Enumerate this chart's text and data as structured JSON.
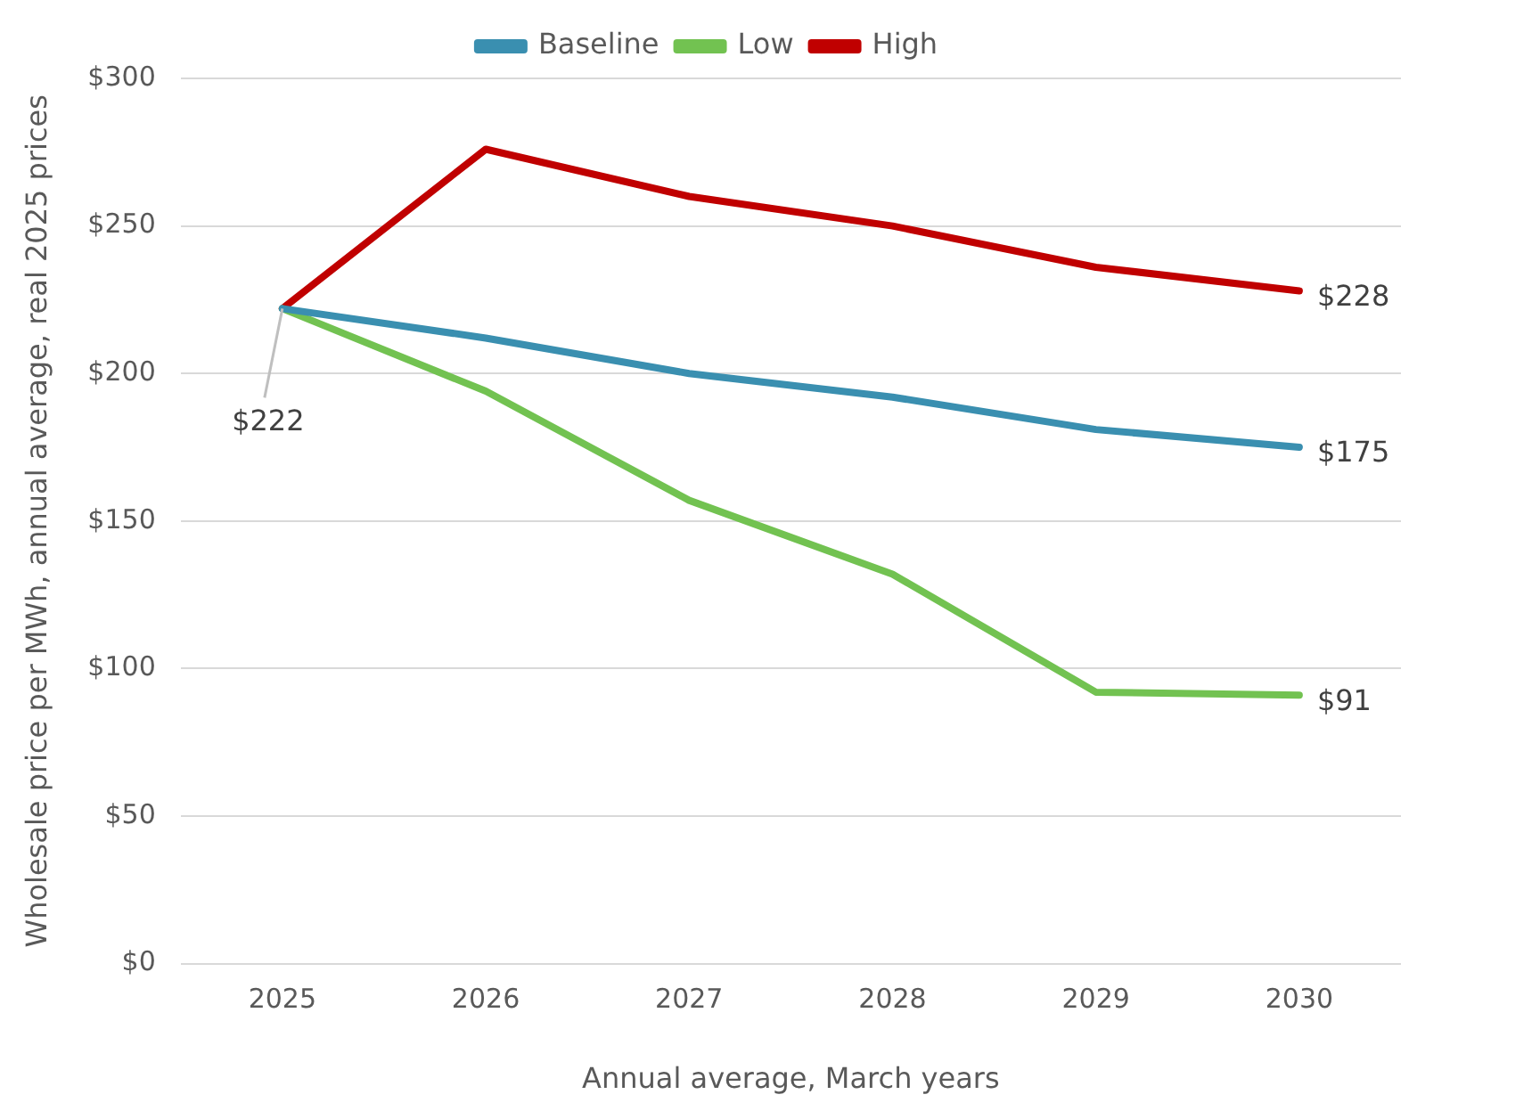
{
  "chart_data": {
    "type": "line",
    "xlabel": "Annual average, March years",
    "ylabel": "Wholesale price per MWh, annual average, real 2025 prices",
    "categories": [
      "2025",
      "2026",
      "2027",
      "2028",
      "2029",
      "2030"
    ],
    "series": [
      {
        "name": "Baseline",
        "color": "#3a8fb0",
        "values": [
          222,
          212,
          200,
          192,
          181,
          175
        ],
        "value_labels": [
          null,
          null,
          null,
          null,
          null,
          "$175"
        ]
      },
      {
        "name": "Low",
        "color": "#72c251",
        "values": [
          222,
          194,
          157,
          132,
          92,
          91
        ],
        "value_labels": [
          null,
          null,
          null,
          null,
          null,
          "$91"
        ]
      },
      {
        "name": "High",
        "color": "#c00000",
        "values": [
          222,
          276,
          260,
          250,
          236,
          228
        ],
        "value_labels": [
          "$222",
          null,
          null,
          null,
          null,
          "$228"
        ]
      }
    ],
    "ylim": [
      0,
      300
    ],
    "yticks": [
      {
        "value": 0,
        "label": "$0"
      },
      {
        "value": 50,
        "label": "$50"
      },
      {
        "value": 100,
        "label": "$100"
      },
      {
        "value": 150,
        "label": "$150"
      },
      {
        "value": 200,
        "label": "$200"
      },
      {
        "value": 250,
        "label": "$250"
      },
      {
        "value": 300,
        "label": "$300"
      }
    ],
    "grid": "y",
    "legend": "top",
    "marker": "none",
    "line_style": "solid"
  }
}
